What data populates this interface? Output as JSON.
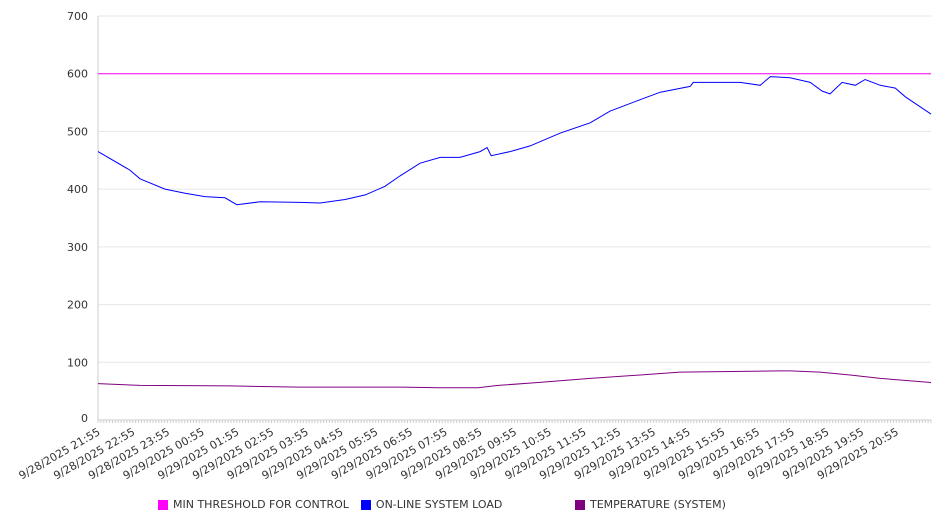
{
  "chart_data": {
    "type": "line",
    "title": "",
    "xlabel": "",
    "ylabel": "",
    "ylim": [
      0,
      700
    ],
    "yticks": [
      "0",
      "100",
      "200",
      "300",
      "400",
      "500",
      "600",
      "700"
    ],
    "grid": true,
    "legend_position": "bottom",
    "x_unit": "hours since 9/28/2025 21:55",
    "xlim": [
      0,
      24
    ],
    "xtick_labels": [
      "9/28/2025 21:55",
      "9/28/2025 22:55",
      "9/28/2025 23:55",
      "9/29/2025 00:55",
      "9/29/2025 01:55",
      "9/29/2025 02:55",
      "9/29/2025 03:55",
      "9/29/2025 04:55",
      "9/29/2025 05:55",
      "9/29/2025 06:55",
      "9/29/2025 07:55",
      "9/29/2025 08:55",
      "9/29/2025 09:55",
      "9/29/2025 10:55",
      "9/29/2025 11:55",
      "9/29/2025 12:55",
      "9/29/2025 13:55",
      "9/29/2025 14:55",
      "9/29/2025 15:55",
      "9/29/2025 16:55",
      "9/29/2025 17:55",
      "9/29/2025 18:55",
      "9/29/2025 19:55",
      "9/29/2025 20:55"
    ],
    "series": [
      {
        "name": "MIN THRESHOLD FOR CONTROL",
        "color": "#ff00ff",
        "x": [
          0,
          24
        ],
        "y": [
          600,
          600
        ]
      },
      {
        "name": "ON-LINE SYSTEM LOAD",
        "color": "#0000ff",
        "x": [
          0,
          0.92,
          1.21,
          1.93,
          2.51,
          3.08,
          3.66,
          4.0,
          4.67,
          5.82,
          6.4,
          7.12,
          7.7,
          8.27,
          8.7,
          9.28,
          9.86,
          10.43,
          11.01,
          11.21,
          11.33,
          11.87,
          12.45,
          13.31,
          14.18,
          14.75,
          15.62,
          16.2,
          17.06,
          17.15,
          17.93,
          18.5,
          19.08,
          19.37,
          19.94,
          20.52,
          20.86,
          21.09,
          21.44,
          21.82,
          22.1,
          22.54,
          22.97,
          23.26,
          24
        ],
        "y": [
          465,
          433,
          418,
          400,
          393,
          387,
          385,
          373,
          378,
          377,
          376,
          382,
          390,
          405,
          423,
          445,
          455,
          455,
          465,
          472,
          458,
          465,
          475,
          497,
          515,
          535,
          555,
          568,
          578,
          585,
          585,
          585,
          580,
          595,
          593,
          585,
          570,
          565,
          585,
          580,
          590,
          580,
          575,
          560,
          530
        ]
      },
      {
        "name": "TEMPERATURE (SYSTEM)",
        "color": "#800080",
        "x": [
          0,
          1.21,
          3.77,
          5.79,
          8.8,
          9.8,
          10.95,
          11.53,
          12.68,
          14.18,
          15.62,
          16.77,
          19.65,
          19.94,
          20.8,
          21.67,
          22.54,
          24
        ],
        "y": [
          63,
          60,
          59,
          57,
          57,
          56,
          56,
          60,
          65,
          72,
          78,
          83,
          85,
          85,
          83,
          78,
          72,
          65
        ]
      }
    ]
  }
}
